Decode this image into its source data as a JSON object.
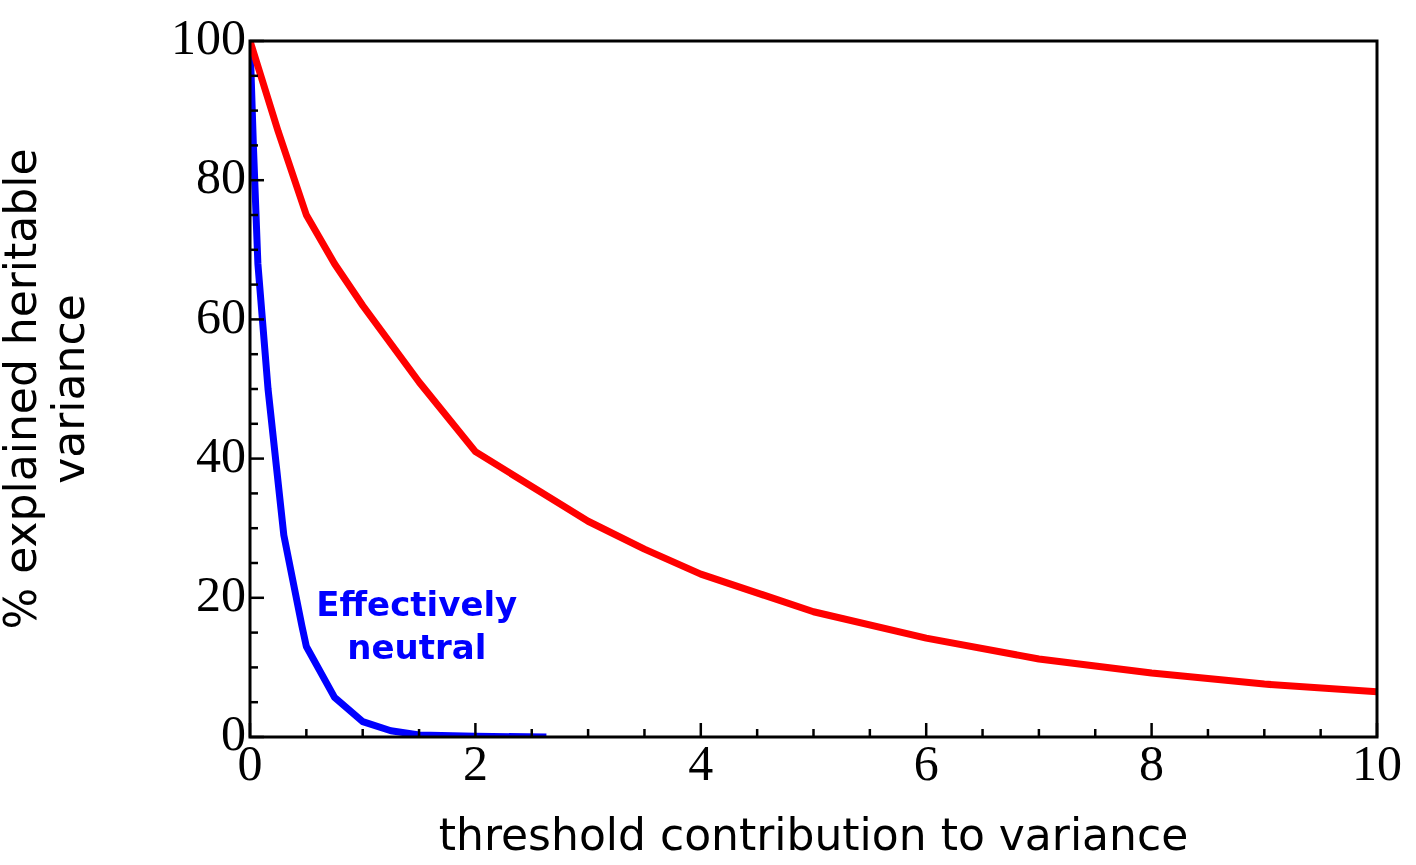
{
  "chart_data": {
    "type": "line",
    "xlabel": "threshold contribution to variance",
    "ylabel": "% explained heritable variance",
    "xlim": [
      0,
      10
    ],
    "ylim": [
      0,
      100
    ],
    "xticks": [
      0,
      {
        "value": 0.5,
        "label": null
      },
      2,
      {
        "value": 1,
        "label": null
      },
      {
        "value": 1.5,
        "label": null
      },
      {
        "value": 2.5,
        "label": null
      },
      {
        "value": 3,
        "label": null
      },
      {
        "value": 3.5,
        "label": null
      },
      4,
      {
        "value": 4.5,
        "label": null
      },
      {
        "value": 5,
        "label": null
      },
      {
        "value": 5.5,
        "label": null
      },
      6,
      {
        "value": 6.5,
        "label": null
      },
      {
        "value": 7,
        "label": null
      },
      {
        "value": 7.5,
        "label": null
      },
      8,
      {
        "value": 8.5,
        "label": null
      },
      {
        "value": 9,
        "label": null
      },
      {
        "value": 9.5,
        "label": null
      },
      10
    ],
    "yticks": [
      0,
      {
        "value": 5,
        "label": null
      },
      {
        "value": 10,
        "label": null
      },
      {
        "value": 15,
        "label": null
      },
      20,
      {
        "value": 25,
        "label": null
      },
      {
        "value": 30,
        "label": null
      },
      {
        "value": 35,
        "label": null
      },
      40,
      {
        "value": 45,
        "label": null
      },
      {
        "value": 50,
        "label": null
      },
      {
        "value": 55,
        "label": null
      },
      60,
      {
        "value": 65,
        "label": null
      },
      {
        "value": 70,
        "label": null
      },
      {
        "value": 75,
        "label": null
      },
      80,
      {
        "value": 85,
        "label": null
      },
      {
        "value": 90,
        "label": null
      },
      {
        "value": 95,
        "label": null
      },
      100
    ],
    "grid": false,
    "legend": false,
    "marker": "none",
    "line_style": "solid",
    "series": [
      {
        "color": "#ff0000",
        "x": [
          0,
          0.25,
          0.5,
          0.75,
          1,
          1.5,
          2,
          2.5,
          3,
          3.5,
          4,
          5,
          6,
          7,
          8,
          9,
          10
        ],
        "values": [
          100,
          87,
          75,
          68,
          62,
          51,
          41,
          36,
          31,
          27,
          23.4,
          18,
          14.2,
          11.2,
          9.2,
          7.6,
          6.5
        ]
      },
      {
        "name": "Effectively neutral",
        "color": "#0000ff",
        "x": [
          0,
          0.03,
          0.07,
          0.16,
          0.3,
          0.46,
          0.5,
          0.75,
          1,
          1.25,
          1.5,
          2,
          2.63
        ],
        "values": [
          100,
          85,
          68,
          50,
          29,
          16,
          13,
          5.7,
          2.2,
          0.9,
          0.3,
          0.1,
          0
        ]
      }
    ]
  }
}
